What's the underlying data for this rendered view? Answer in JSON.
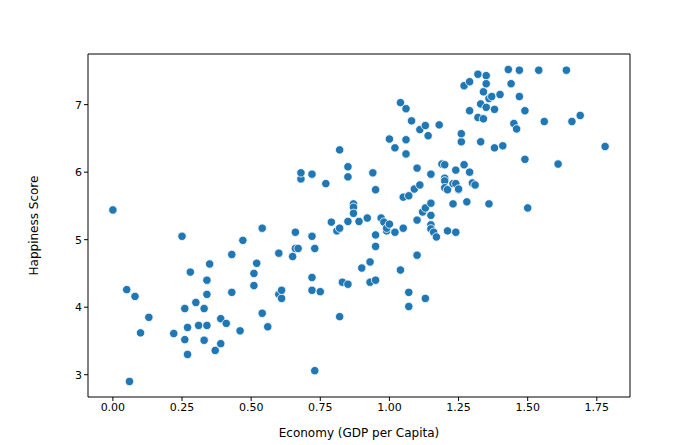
{
  "chart_data": {
    "type": "scatter",
    "x_label": "Economy (GDP per Capita)",
    "y_label": "Happiness Score",
    "color": "#1f77b4",
    "marker": "circle",
    "grid": false,
    "xlim": [
      -0.09,
      1.87
    ],
    "ylim": [
      2.67,
      7.75
    ],
    "xticks": [
      {
        "value": 0,
        "label": "0.00"
      },
      {
        "value": 0.25,
        "label": "0.25"
      },
      {
        "value": 0.5,
        "label": "0.50"
      },
      {
        "value": 0.75,
        "label": "0.75"
      },
      {
        "value": 1,
        "label": "1.00"
      },
      {
        "value": 1.25,
        "label": "1.25"
      },
      {
        "value": 1.5,
        "label": "1.50"
      },
      {
        "value": 1.75,
        "label": "1.75"
      }
    ],
    "yticks": [
      3,
      4,
      5,
      6,
      7
    ],
    "x": [
      0.0,
      0.06,
      0.05,
      0.08,
      0.1,
      0.13,
      0.22,
      0.25,
      0.26,
      0.26,
      0.28,
      0.27,
      0.27,
      0.3,
      0.31,
      0.33,
      0.34,
      0.34,
      0.34,
      0.33,
      0.35,
      0.37,
      0.39,
      0.39,
      0.41,
      0.43,
      0.43,
      0.46,
      0.47,
      0.51,
      0.51,
      0.52,
      0.54,
      0.54,
      0.56,
      0.6,
      0.6,
      0.61,
      0.61,
      0.65,
      0.66,
      0.66,
      0.67,
      0.68,
      0.68,
      0.72,
      0.72,
      0.73,
      0.72,
      0.73,
      0.72,
      0.75,
      0.77,
      0.79,
      0.82,
      0.81,
      0.82,
      0.82,
      0.83,
      0.85,
      0.85,
      0.85,
      0.85,
      0.87,
      0.87,
      0.87,
      0.89,
      0.9,
      0.92,
      0.93,
      0.93,
      0.94,
      0.95,
      0.95,
      0.95,
      0.95,
      0.97,
      0.98,
      1.0,
      0.99,
      0.99,
      1.0,
      1.02,
      1.02,
      1.04,
      1.04,
      1.05,
      1.05,
      1.06,
      1.06,
      1.06,
      1.07,
      1.07,
      1.07,
      1.08,
      1.09,
      1.1,
      1.1,
      1.1,
      1.11,
      1.11,
      1.12,
      1.13,
      1.13,
      1.13,
      1.14,
      1.15,
      1.15,
      1.15,
      1.15,
      1.15,
      1.16,
      1.17,
      1.18,
      1.19,
      1.2,
      1.2,
      1.2,
      1.21,
      1.2,
      1.21,
      1.23,
      1.23,
      1.24,
      1.24,
      1.24,
      1.25,
      1.25,
      1.26,
      1.26,
      1.27,
      1.27,
      1.28,
      1.29,
      1.29,
      1.29,
      1.3,
      1.31,
      1.32,
      1.32,
      1.33,
      1.33,
      1.34,
      1.34,
      1.35,
      1.35,
      1.35,
      1.36,
      1.36,
      1.37,
      1.38,
      1.38,
      1.41,
      1.4,
      1.43,
      1.44,
      1.45,
      1.46,
      1.47,
      1.47,
      1.49,
      1.49,
      1.5,
      1.54,
      1.56,
      1.61,
      1.64,
      1.66,
      1.69,
      1.78
    ],
    "values": [
      5.44,
      2.9,
      4.26,
      4.16,
      3.62,
      3.85,
      3.61,
      5.05,
      3.52,
      3.98,
      4.52,
      3.3,
      3.7,
      4.07,
      3.73,
      3.51,
      4.4,
      4.19,
      3.73,
      3.98,
      4.64,
      3.36,
      3.46,
      3.83,
      3.76,
      4.78,
      4.22,
      3.65,
      4.99,
      4.5,
      4.32,
      4.65,
      5.17,
      3.91,
      3.71,
      4.8,
      4.19,
      4.13,
      4.25,
      4.75,
      4.87,
      5.11,
      4.87,
      5.9,
      5.99,
      5.97,
      5.05,
      4.87,
      4.25,
      3.06,
      4.44,
      4.23,
      5.83,
      5.26,
      6.33,
      5.13,
      5.17,
      3.86,
      4.37,
      4.34,
      6.08,
      5.93,
      5.27,
      5.53,
      5.48,
      5.39,
      5.27,
      4.58,
      5.32,
      4.37,
      4.67,
      5.99,
      5.74,
      4.4,
      5.07,
      4.9,
      5.32,
      5.26,
      6.49,
      5.13,
      5.17,
      5.23,
      6.36,
      5.11,
      4.55,
      7.03,
      5.63,
      5.17,
      6.94,
      6.48,
      6.27,
      5.65,
      4.22,
      4.01,
      6.76,
      5.75,
      5.29,
      4.77,
      6.06,
      6.63,
      5.81,
      5.41,
      6.69,
      5.47,
      4.13,
      6.54,
      5.97,
      5.36,
      5.54,
      5.22,
      5.16,
      5.11,
      5.04,
      6.7,
      6.12,
      5.91,
      5.87,
      5.77,
      5.74,
      6.11,
      5.13,
      5.83,
      5.53,
      6.03,
      5.11,
      5.83,
      5.74,
      5.75,
      6.45,
      6.57,
      6.11,
      7.28,
      5.56,
      6.0,
      6.91,
      7.34,
      5.84,
      5.81,
      7.45,
      6.81,
      6.45,
      7.01,
      6.79,
      7.19,
      7.43,
      6.96,
      7.31,
      5.53,
      7.09,
      7.12,
      6.93,
      6.36,
      6.39,
      7.15,
      7.52,
      7.31,
      6.72,
      6.64,
      7.12,
      7.51,
      6.19,
      6.91,
      5.47,
      7.51,
      6.75,
      6.12,
      7.51,
      6.75,
      6.84,
      6.38
    ]
  }
}
